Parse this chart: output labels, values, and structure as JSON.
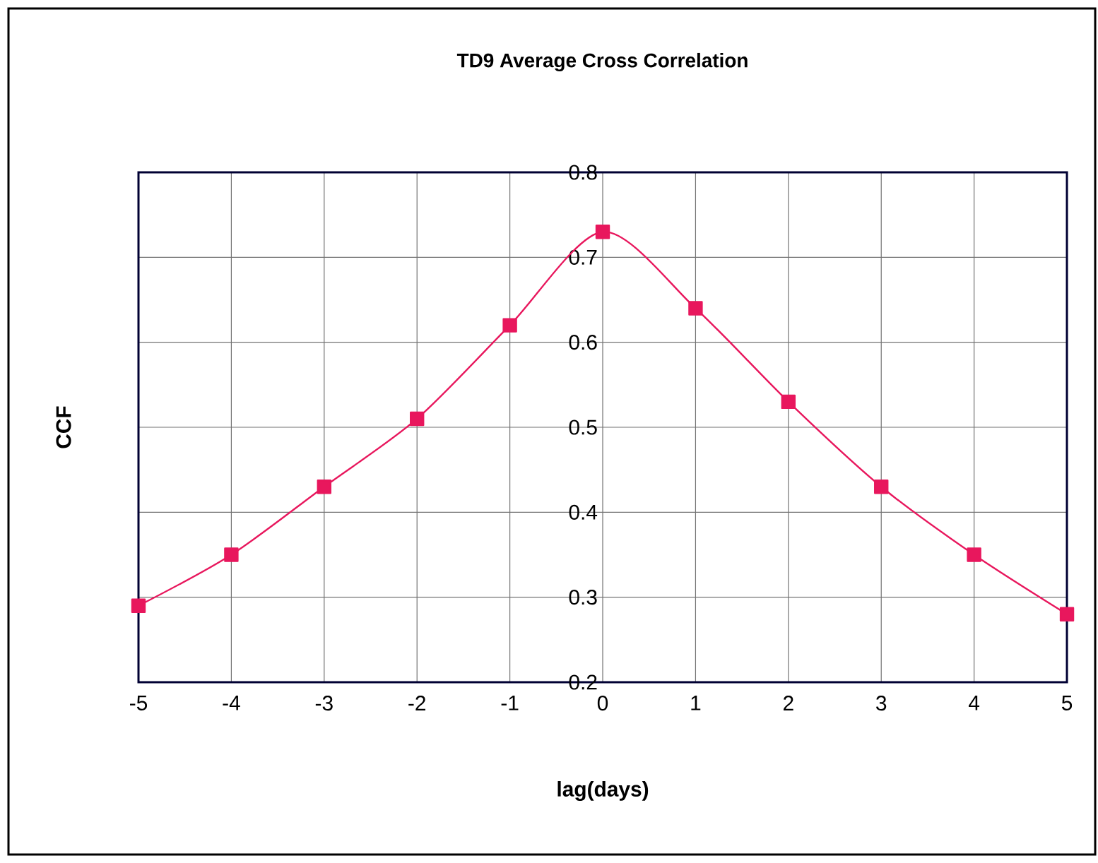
{
  "chart_data": {
    "type": "line",
    "title": "TD9 Average Cross Correlation",
    "xlabel": "lag(days)",
    "ylabel": "CCF",
    "x": [
      -5,
      -4,
      -3,
      -2,
      -1,
      0,
      1,
      2,
      3,
      4,
      5
    ],
    "series": [
      {
        "color": "#e8175d",
        "values": [
          0.29,
          0.35,
          0.43,
          0.51,
          0.62,
          0.73,
          0.64,
          0.53,
          0.43,
          0.35,
          0.28
        ]
      }
    ],
    "xlim": [
      -5,
      5
    ],
    "ylim": [
      0.2,
      0.8
    ],
    "xticks": [
      -5,
      -4,
      -3,
      -2,
      -1,
      0,
      1,
      2,
      3,
      4,
      5
    ],
    "yticks": [
      0.2,
      0.3,
      0.4,
      0.5,
      0.6,
      0.7,
      0.8
    ],
    "grid": true,
    "marker": "square",
    "line_style": "solid"
  }
}
